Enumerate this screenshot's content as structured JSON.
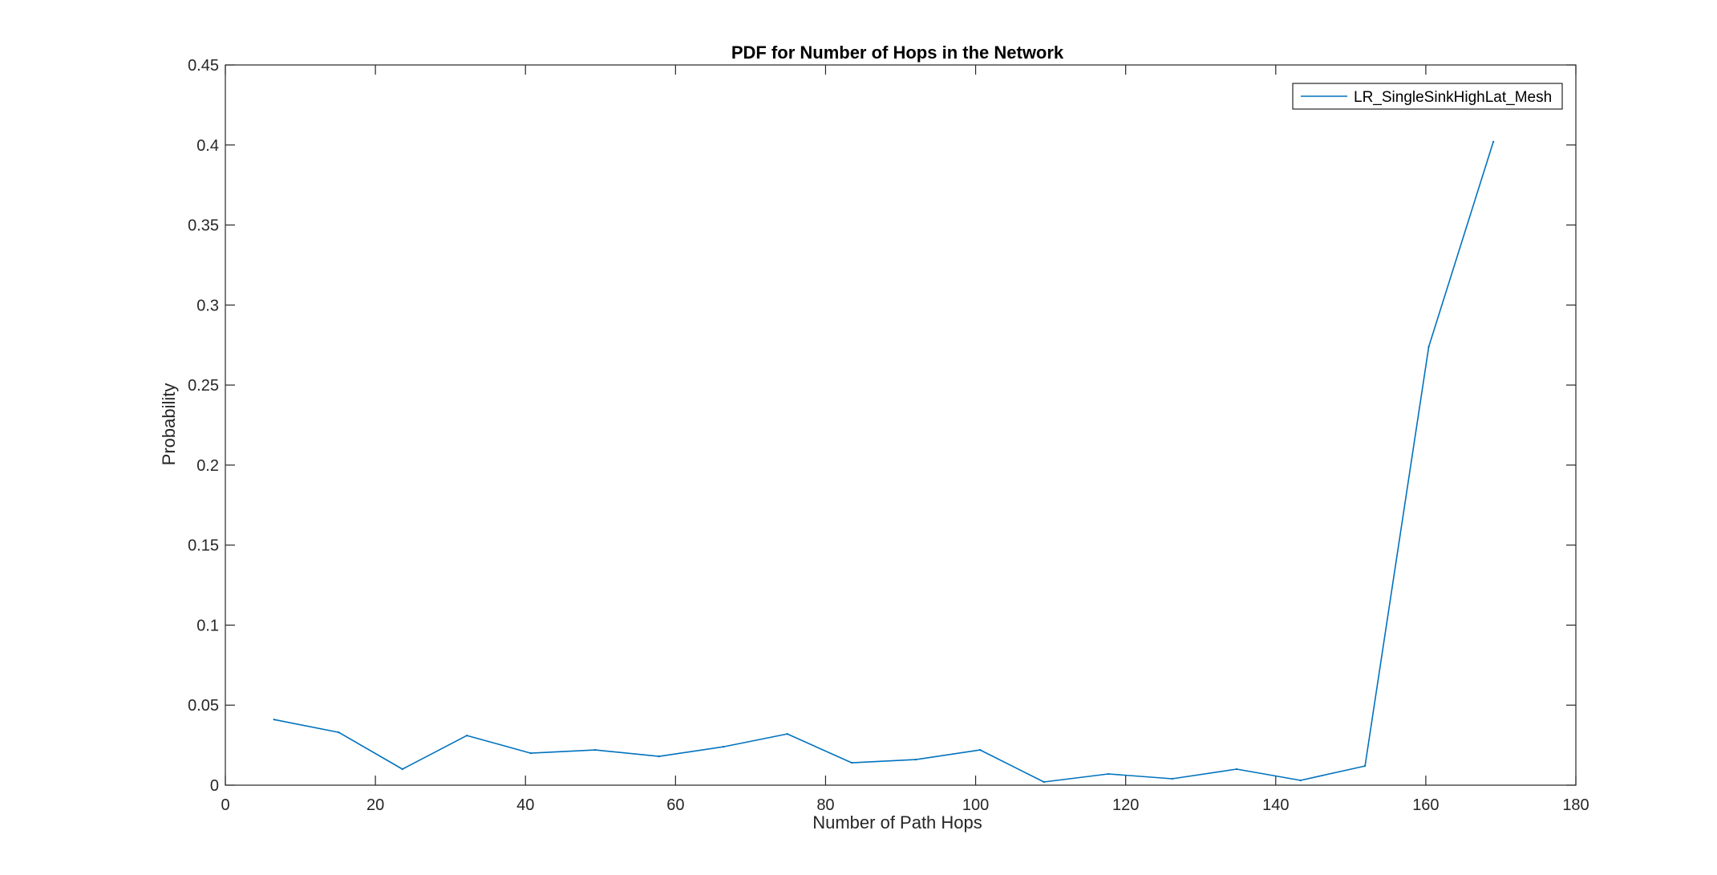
{
  "chart_data": {
    "type": "line",
    "title": "PDF for Number of Hops in the Network",
    "xlabel": "Number of Path Hops",
    "ylabel": "Probability",
    "xlim": [
      0,
      180
    ],
    "ylim": [
      0,
      0.45
    ],
    "xticks": [
      0,
      20,
      40,
      60,
      80,
      100,
      120,
      140,
      160,
      180
    ],
    "xtick_labels": [
      "0",
      "20",
      "40",
      "60",
      "80",
      "100",
      "120",
      "140",
      "160",
      "180"
    ],
    "yticks": [
      0,
      0.05,
      0.1,
      0.15,
      0.2,
      0.25,
      0.3,
      0.35,
      0.4,
      0.45
    ],
    "ytick_labels": [
      "0",
      "0.05",
      "0.1",
      "0.15",
      "0.2",
      "0.25",
      "0.3",
      "0.35",
      "0.4",
      "0.45"
    ],
    "grid": false,
    "legend_position": "top-right",
    "series": [
      {
        "name": "LR_SingleSinkHighLat_Mesh",
        "color": "#0072BD",
        "x": [
          6.5,
          15.1,
          23.6,
          32.2,
          40.7,
          49.3,
          57.8,
          66.4,
          74.9,
          83.5,
          92.0,
          100.6,
          109.1,
          117.7,
          126.2,
          134.8,
          143.3,
          151.9,
          160.4,
          169.0
        ],
        "y": [
          0.041,
          0.033,
          0.01,
          0.031,
          0.02,
          0.022,
          0.018,
          0.024,
          0.032,
          0.014,
          0.016,
          0.022,
          0.002,
          0.007,
          0.004,
          0.01,
          0.003,
          0.012,
          0.274,
          0.402
        ]
      }
    ]
  }
}
